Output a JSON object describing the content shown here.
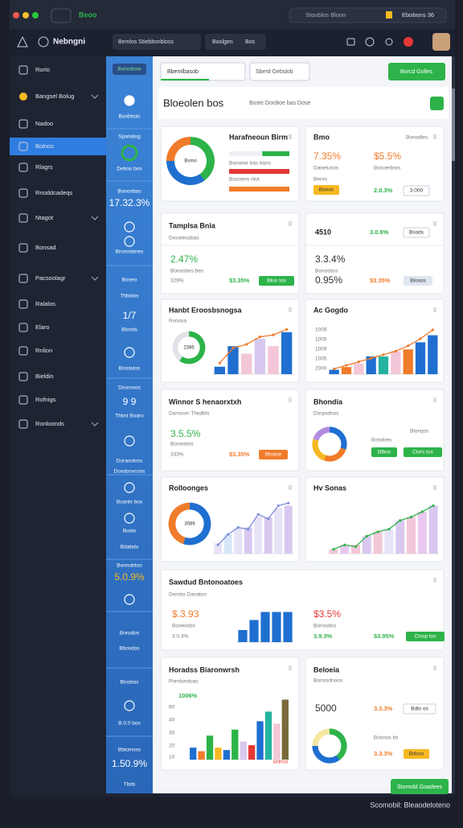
{
  "window": {
    "tab": "Beoo",
    "search": "Stoublos Blonn",
    "user": "Ebobons 36"
  },
  "header": {
    "logo": "Nebngni",
    "crumbs": [
      "Bemlos Stiebltonbloss",
      "Boolgen",
      "Bos"
    ]
  },
  "sidebar": [
    "Rorlo",
    "Bangsel Bolug",
    "Nadoo",
    "Bolnos",
    "Rlagrs",
    "Rnoddcadeqs",
    "Ntagot",
    "Bonsad",
    "Pacsoolagr",
    "Ralalos",
    "Elaro",
    "Rnlion",
    "Bieldin",
    "Rofnigs",
    "Ronloonds"
  ],
  "rail": [
    {
      "text": "Bonodose",
      "tone": "pill"
    },
    {
      "text": "Bonbhols",
      "tone": "text"
    },
    {
      "text": "Spanidog",
      "tone": "text"
    },
    {
      "text": "Deboo bos",
      "tone": "text"
    },
    {
      "text": "Bononbas",
      "tone": "text"
    },
    {
      "text": "17.32.3%",
      "tone": "big"
    },
    {
      "text": "Bronosbnes",
      "tone": "text"
    },
    {
      "text": "Boneo",
      "tone": "text"
    },
    {
      "text": "Thbolos",
      "tone": "text"
    },
    {
      "text": "1/7",
      "tone": "big"
    },
    {
      "text": "Blonds",
      "tone": "text"
    },
    {
      "text": "Bnoaslos",
      "tone": "text"
    },
    {
      "text": "Doorosos",
      "tone": "text"
    },
    {
      "text": "9 9",
      "tone": "big"
    },
    {
      "text": "Thbst Boaro",
      "tone": "text"
    },
    {
      "text": "Doraosloss",
      "tone": "text"
    },
    {
      "text": "Dosdosvcoss",
      "tone": "text"
    },
    {
      "text": "Boanls bos",
      "tone": "text"
    },
    {
      "text": "Boots",
      "tone": "text"
    },
    {
      "text": "Bdabdo",
      "tone": "text"
    },
    {
      "text": "Bonnobtoo",
      "tone": "text"
    },
    {
      "text": "5.0.9%",
      "tone": "big-orange"
    },
    {
      "text": "Borodos",
      "tone": "text"
    },
    {
      "text": "Bbosdos",
      "tone": "text"
    },
    {
      "text": "Blosbos",
      "tone": "text"
    },
    {
      "text": "B.0.0 bos",
      "tone": "text"
    },
    {
      "text": "Bbiomsss",
      "tone": "text"
    },
    {
      "text": "1.50.9%",
      "tone": "big"
    },
    {
      "text": "Tbds",
      "tone": "text"
    }
  ],
  "toolbar": {
    "select": "Bbemlbasob",
    "filter": "Sberd Gebslob",
    "action": "Borcd Golles"
  },
  "page": {
    "title": "Bloeolen bos",
    "subtitle": "Boste Dordtoe bas Dose"
  },
  "cards": [
    {
      "items": [
        {
          "text": "Harafneoun Birm",
          "tone": "title"
        },
        {
          "text": "Bonoloe bas bons",
          "tone": "small"
        },
        {
          "text": "Bosoens nlot",
          "tone": "small"
        }
      ],
      "chart": {
        "donut": [
          40,
          35,
          25
        ],
        "donut_colors": [
          "#2db34a",
          "#1f6fd1",
          "#f07b2a"
        ],
        "donut_label": "Bsmo",
        "progress": [
          45,
          100,
          100
        ],
        "progress_colors": [
          "#2db34a",
          "#e53935",
          "#f07b2a"
        ],
        "ylim": [
          0,
          100
        ]
      }
    },
    {
      "items": [
        {
          "text": "Bmo",
          "tone": "title"
        },
        {
          "text": "Bonodles",
          "tone": "small"
        },
        {
          "text": "7.35%",
          "tone": "big-orange"
        },
        {
          "text": "$5.5%",
          "tone": "big-orange"
        },
        {
          "text": "Danelunos",
          "tone": "small"
        },
        {
          "text": "Bosoerbors",
          "tone": "small"
        },
        {
          "text": "Benrs",
          "tone": "small"
        },
        {
          "text": "Bonos",
          "tone": "button-yellow"
        },
        {
          "text": "2.0.3%",
          "tone": "green"
        },
        {
          "text": "3.000",
          "tone": "button-outline"
        }
      ]
    },
    {
      "items": [
        {
          "text": "Tamplsa Bnia",
          "tone": "title"
        },
        {
          "text": "Dosolesobas",
          "tone": "small"
        },
        {
          "text": "2.47%",
          "tone": "big-green"
        },
        {
          "text": "Bonosbes bes",
          "tone": "small"
        },
        {
          "text": "329%",
          "tone": "small"
        },
        {
          "text": "$3.35%",
          "tone": "green"
        },
        {
          "text": "Bloo tos",
          "tone": "button-green"
        }
      ]
    },
    {
      "items": [
        {
          "text": "4510",
          "tone": "title"
        },
        {
          "text": "3.0.8%",
          "tone": "green"
        },
        {
          "text": "Bsods",
          "tone": "button-outline"
        },
        {
          "text": "3.3.4%",
          "tone": "big-dark"
        },
        {
          "text": "Bonosbss",
          "tone": "small"
        },
        {
          "text": "0.95%",
          "tone": "big-dark"
        },
        {
          "text": "$3.35%",
          "tone": "orange"
        },
        {
          "text": "Blosos",
          "tone": "button-gray"
        }
      ]
    },
    {
      "items": [
        {
          "text": "Hanbt Eroosbsnogsa",
          "tone": "title"
        },
        {
          "text": "Rsnosa",
          "tone": "small"
        }
      ],
      "chart": {
        "donut": [
          60,
          40
        ],
        "donut_colors": [
          "#2db34a",
          "#e2e4ea"
        ],
        "donut_label": "2386",
        "bars": [
          8,
          30,
          22,
          38,
          30,
          45
        ],
        "bar_colors": [
          "#1f6fd1",
          "#1f6fd1",
          "#f3c6d8",
          "#d8c8f0",
          "#f3c6d8",
          "#1f6fd1"
        ],
        "line": [
          12,
          28,
          32,
          40,
          42,
          48
        ],
        "line_color": "#f07b2a",
        "ylim": [
          0,
          50
        ]
      }
    },
    {
      "items": [
        {
          "text": "Ac Gogdo",
          "tone": "title"
        },
        {
          "text": "1009",
          "tone": "small"
        },
        {
          "text": "1005",
          "tone": "small"
        },
        {
          "text": "1009",
          "tone": "small"
        },
        {
          "text": "1005",
          "tone": "small"
        },
        {
          "text": "2000",
          "tone": "small"
        }
      ],
      "chart": {
        "bars": [
          5,
          8,
          12,
          20,
          20,
          26,
          28,
          36,
          44
        ],
        "bar_colors": [
          "#1f6fd1",
          "#f07b2a",
          "#f3c6d8",
          "#1f6fd1",
          "#26b3a0",
          "#f3c6d8",
          "#f07b2a",
          "#1f6fd1",
          "#1f6fd1"
        ],
        "line": [
          6,
          10,
          14,
          18,
          22,
          26,
          32,
          40,
          50
        ],
        "line_color": "#f07b2a",
        "ylim": [
          0,
          50
        ]
      }
    },
    {
      "items": [
        {
          "text": "Winnor S henaorxtxh",
          "tone": "title"
        },
        {
          "text": "Donsson Thodbis",
          "tone": "small"
        },
        {
          "text": "3.5.5%",
          "tone": "big-green"
        },
        {
          "text": "Booosbss",
          "tone": "small"
        },
        {
          "text": "333%",
          "tone": "small"
        },
        {
          "text": "$3.35%",
          "tone": "orange"
        },
        {
          "text": "Bhstoe",
          "tone": "button-orange"
        }
      ]
    },
    {
      "items": [
        {
          "text": "Bhondia",
          "tone": "title"
        },
        {
          "text": "Dorpsdnos",
          "tone": "small"
        },
        {
          "text": "Bosdoes",
          "tone": "small"
        },
        {
          "text": "Blonqos",
          "tone": "small"
        },
        {
          "text": "Blbos",
          "tone": "button-green"
        },
        {
          "text": "Clors tos",
          "tone": "button-green"
        }
      ],
      "chart": {
        "donut": [
          30,
          25,
          25,
          20
        ],
        "donut_colors": [
          "#1f6fd1",
          "#f07b2a",
          "#f5b921",
          "#b38be0"
        ]
      }
    },
    {
      "items": [
        {
          "text": "Rolloonges",
          "tone": "title"
        }
      ],
      "chart": {
        "donut": [
          55,
          45
        ],
        "donut_colors": [
          "#1f6fd1",
          "#f07b2a"
        ],
        "donut_label": "3086",
        "bars": [
          12,
          22,
          30,
          30,
          42,
          42,
          52,
          55
        ],
        "bar_colors": [
          "#e8e2f7",
          "#d8e6f7",
          "#e8e2f7",
          "#d8c8f0",
          "#e8e2f7",
          "#d8c8f0",
          "#e8e2f7",
          "#d8c8f0"
        ],
        "line": [
          10,
          22,
          30,
          28,
          45,
          40,
          55,
          58
        ],
        "line_color": "#7b8fd8",
        "ylim": [
          0,
          60
        ]
      }
    },
    {
      "items": [
        {
          "text": "Hv Sonas",
          "tone": "title"
        }
      ],
      "chart": {
        "bars": [
          5,
          10,
          10,
          20,
          25,
          28,
          38,
          42,
          48,
          55
        ],
        "bar_colors": [
          "#f3c6d8",
          "#e8c8f0",
          "#f3c6d8",
          "#d8c8f0",
          "#f3c6d8",
          "#e8e2f7",
          "#d8c8f0",
          "#f3c6d8",
          "#e8c8f0",
          "#d8c8f0"
        ],
        "line": [
          5,
          10,
          8,
          20,
          25,
          28,
          38,
          42,
          48,
          55
        ],
        "line_color": "#2db34a",
        "ylim": [
          0,
          60
        ]
      }
    },
    {
      "items": [
        {
          "text": "Sawdud Bntonoatoes",
          "tone": "title"
        },
        {
          "text": "Donsto Danaton",
          "tone": "small"
        },
        {
          "text": "$.3.93",
          "tone": "big-orange"
        },
        {
          "text": "Booeosbs",
          "tone": "small"
        },
        {
          "text": "3.0.3%",
          "tone": "small"
        },
        {
          "text": "$3.5%",
          "tone": "big-red"
        },
        {
          "text": "Bonosbss",
          "tone": "small"
        },
        {
          "text": "3.9.3%",
          "tone": "green"
        },
        {
          "text": "$3.95%",
          "tone": "green"
        },
        {
          "text": "Clsop tos",
          "tone": "button-green"
        }
      ],
      "chart": {
        "bars": [
          12,
          22,
          30,
          30,
          30
        ],
        "bar_colors": [
          "#1f6fd1",
          "#1f6fd1",
          "#1f6fd1",
          "#1f6fd1",
          "#1f6fd1"
        ],
        "ylim": [
          0,
          32
        ]
      }
    },
    {
      "items": [
        {
          "text": "Horadss Biaronwrsh",
          "tone": "title"
        },
        {
          "text": "Pornlondoas",
          "tone": "small"
        },
        {
          "text": "1006%",
          "tone": "green"
        },
        {
          "text": "60",
          "tone": "small"
        },
        {
          "text": "40",
          "tone": "small"
        },
        {
          "text": "30",
          "tone": "small"
        },
        {
          "text": "20",
          "tone": "small"
        },
        {
          "text": "10",
          "tone": "small"
        },
        {
          "text": "Bdnco",
          "tone": "red"
        }
      ],
      "chart": {
        "bars": [
          10,
          7,
          20,
          10,
          8,
          25,
          15,
          12,
          32,
          40,
          30,
          50
        ],
        "bar_colors": [
          "#1f6fd1",
          "#f07b2a",
          "#2db34a",
          "#f5b921",
          "#1f6fd1",
          "#2db34a",
          "#d8c8f0",
          "#e53935",
          "#1f6fd1",
          "#26b3a0",
          "#f3c6d8",
          "#7a6a3a"
        ],
        "ylim": [
          0,
          55
        ]
      }
    },
    {
      "items": [
        {
          "text": "Beloeia",
          "tone": "title"
        },
        {
          "text": "Bonosdnoos",
          "tone": "small"
        },
        {
          "text": "5000",
          "tone": "big-dark"
        },
        {
          "text": "3.3.3%",
          "tone": "orange"
        },
        {
          "text": "Bdlo os",
          "tone": "button-outline"
        },
        {
          "text": "Bosnos bs",
          "tone": "small"
        },
        {
          "text": "3.3.3%",
          "tone": "orange"
        },
        {
          "text": "Bdoos",
          "tone": "button-yellow"
        }
      ],
      "chart": {
        "donut": [
          40,
          35,
          25
        ],
        "donut_colors": [
          "#2db34a",
          "#1f6fd1",
          "#f5e6a0"
        ]
      }
    }
  ],
  "footer": {
    "button": "Stomobl Goadees",
    "caption": "Scomobil: Bleaodeloteno"
  }
}
